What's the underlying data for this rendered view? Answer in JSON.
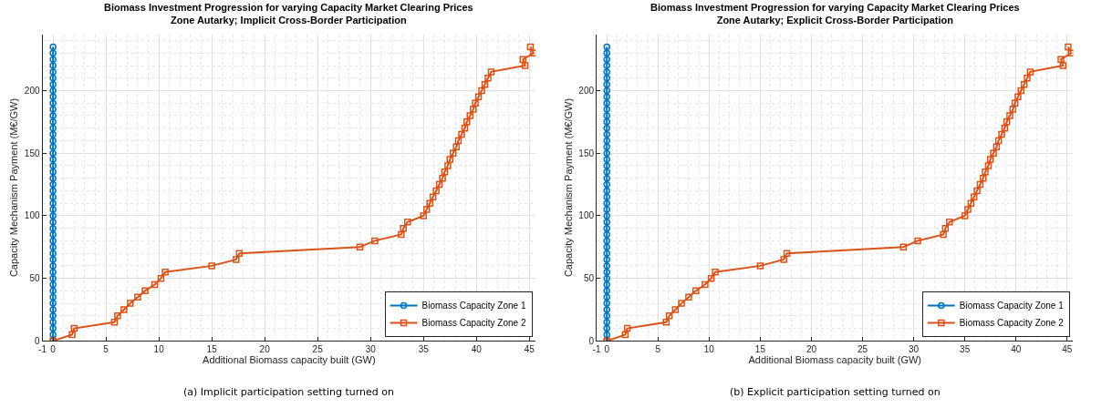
{
  "chart_data": [
    {
      "type": "line",
      "title": "Biomass Investment Progression for varying Capacity Market Clearing Prices\nZone Autarky; Implicit Cross-Border Participation",
      "xlabel": "Additional Biomass capacity built (GW)",
      "ylabel": "Capacity Mechanism Payment (M€/GW)",
      "annotations": [
        "(a) Implicit participation setting turned on"
      ],
      "xlim": [
        -1,
        45.6
      ],
      "xticks": [
        -1,
        0,
        5,
        10,
        15,
        20,
        25,
        30,
        35,
        40,
        45
      ],
      "ylim": [
        0,
        245
      ],
      "yticks": [
        0,
        50,
        100,
        150,
        200
      ],
      "grid": true,
      "legend": "bottom right",
      "line_style": "solid",
      "series": [
        {
          "name": "Biomass Capacity Zone 1",
          "color": "#0072bd",
          "marker": "circle",
          "x": [
            0,
            0,
            0,
            0,
            0,
            0,
            0,
            0,
            0,
            0,
            0,
            0,
            0,
            0,
            0,
            0,
            0,
            0,
            0,
            0,
            0,
            0,
            0,
            0,
            0,
            0,
            0,
            0,
            0,
            0,
            0,
            0,
            0,
            0,
            0,
            0,
            0,
            0,
            0,
            0,
            0,
            0,
            0,
            0,
            0,
            0,
            0,
            0
          ],
          "values": [
            0,
            5,
            10,
            15,
            20,
            25,
            30,
            35,
            40,
            45,
            50,
            55,
            60,
            65,
            70,
            75,
            80,
            85,
            90,
            95,
            100,
            105,
            110,
            115,
            120,
            125,
            130,
            135,
            140,
            145,
            150,
            155,
            160,
            165,
            170,
            175,
            180,
            185,
            190,
            195,
            200,
            205,
            210,
            215,
            220,
            225,
            230,
            235
          ]
        },
        {
          "name": "Biomass Capacity Zone 2",
          "color": "#d95319",
          "marker": "square",
          "x": [
            0,
            1.8,
            2.0,
            5.8,
            6.1,
            6.7,
            7.3,
            8.0,
            8.7,
            9.6,
            10.2,
            10.6,
            15.0,
            17.3,
            17.6,
            29.0,
            30.4,
            32.9,
            33.1,
            33.5,
            35.0,
            35.3,
            35.6,
            35.9,
            36.2,
            36.5,
            36.8,
            37.0,
            37.3,
            37.5,
            37.8,
            38.1,
            38.3,
            38.6,
            38.9,
            39.1,
            39.4,
            39.7,
            39.9,
            40.2,
            40.5,
            40.8,
            41.1,
            41.4,
            44.6,
            44.4,
            45.4,
            45.1
          ],
          "values": [
            0,
            5,
            10,
            15,
            20,
            25,
            30,
            35,
            40,
            45,
            50,
            55,
            60,
            65,
            70,
            75,
            80,
            85,
            90,
            95,
            100,
            105,
            110,
            115,
            120,
            125,
            130,
            135,
            140,
            145,
            150,
            155,
            160,
            165,
            170,
            175,
            180,
            185,
            190,
            195,
            200,
            205,
            210,
            215,
            220,
            225,
            230,
            235
          ]
        }
      ]
    },
    {
      "type": "line",
      "title": "Biomass Investment Progression for varying Capacity Market Clearing Prices\nZone Autarky; Explicit Cross-Border Participation",
      "xlabel": "Additional Biomass capacity built (GW)",
      "ylabel": "Capacity Mechanism Payment (M€/GW)",
      "annotations": [
        "(b) Explicit participation setting turned on"
      ],
      "xlim": [
        -1,
        45.6
      ],
      "xticks": [
        -1,
        0,
        5,
        10,
        15,
        20,
        25,
        30,
        35,
        40,
        45
      ],
      "ylim": [
        0,
        245
      ],
      "yticks": [
        0,
        50,
        100,
        150,
        200
      ],
      "grid": true,
      "legend": "bottom right",
      "line_style": "solid",
      "series": [
        {
          "name": "Biomass Capacity Zone 1",
          "color": "#0072bd",
          "marker": "circle",
          "x": [
            0,
            0,
            0,
            0,
            0,
            0,
            0,
            0,
            0,
            0,
            0,
            0,
            0,
            0,
            0,
            0,
            0,
            0,
            0,
            0,
            0,
            0,
            0,
            0,
            0,
            0,
            0,
            0,
            0,
            0,
            0,
            0,
            0,
            0,
            0,
            0,
            0,
            0,
            0,
            0,
            0,
            0,
            0,
            0,
            0,
            0,
            0,
            0
          ],
          "values": [
            0,
            5,
            10,
            15,
            20,
            25,
            30,
            35,
            40,
            45,
            50,
            55,
            60,
            65,
            70,
            75,
            80,
            85,
            90,
            95,
            100,
            105,
            110,
            115,
            120,
            125,
            130,
            135,
            140,
            145,
            150,
            155,
            160,
            165,
            170,
            175,
            180,
            185,
            190,
            195,
            200,
            205,
            210,
            215,
            220,
            225,
            230,
            235
          ]
        },
        {
          "name": "Biomass Capacity Zone 2",
          "color": "#d95319",
          "marker": "square",
          "x": [
            0,
            1.8,
            2.0,
            5.8,
            6.1,
            6.7,
            7.3,
            8.0,
            8.7,
            9.6,
            10.2,
            10.6,
            15.0,
            17.3,
            17.6,
            29.0,
            30.4,
            32.9,
            33.1,
            33.5,
            35.0,
            35.3,
            35.6,
            35.9,
            36.2,
            36.5,
            36.8,
            37.0,
            37.3,
            37.5,
            37.8,
            38.1,
            38.3,
            38.6,
            38.9,
            39.1,
            39.4,
            39.7,
            39.9,
            40.2,
            40.5,
            40.8,
            41.1,
            41.4,
            44.6,
            44.4,
            45.4,
            45.1
          ],
          "values": [
            0,
            5,
            10,
            15,
            20,
            25,
            30,
            35,
            40,
            45,
            50,
            55,
            60,
            65,
            70,
            75,
            80,
            85,
            90,
            95,
            100,
            105,
            110,
            115,
            120,
            125,
            130,
            135,
            140,
            145,
            150,
            155,
            160,
            165,
            170,
            175,
            180,
            185,
            190,
            195,
            200,
            205,
            210,
            215,
            220,
            225,
            230,
            235
          ]
        }
      ]
    }
  ]
}
